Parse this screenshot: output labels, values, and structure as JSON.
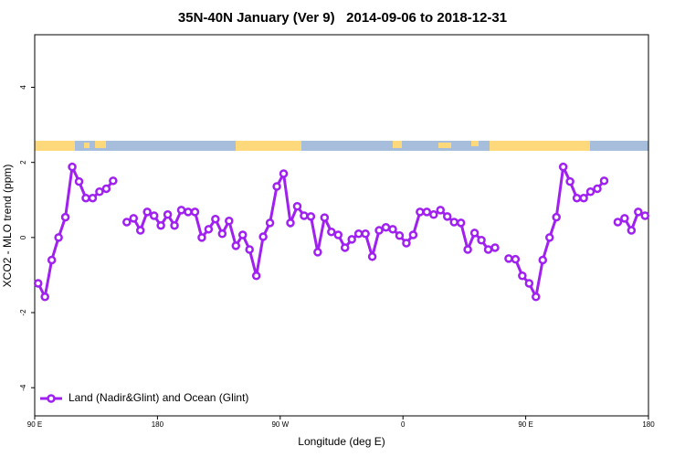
{
  "chart_data": {
    "type": "line",
    "title": "35N-40N January (Ver 9)   2014-09-06 to 2018-12-31",
    "x_label": "Longitude (deg E)",
    "y_label": "XCO2 - MLO trend (ppm)",
    "x": [
      92.5,
      97.5,
      102.5,
      107.5,
      112.5,
      117.5,
      122.5,
      127.5,
      132.5,
      137.5,
      142.5,
      147.5,
      152.5,
      157.5,
      162.5,
      167.5,
      172.5,
      177.5,
      182.5,
      187.5,
      192.5,
      197.5,
      202.5,
      207.5,
      212.5,
      217.5,
      222.5,
      227.5,
      232.5,
      237.5,
      242.5,
      247.5,
      252.5,
      257.5,
      262.5,
      267.5,
      272.5,
      277.5,
      282.5,
      287.5,
      292.5,
      297.5,
      302.5,
      307.5,
      312.5,
      317.5,
      322.5,
      327.5,
      332.5,
      337.5,
      342.5,
      347.5,
      352.5,
      357.5,
      362.5,
      367.5,
      372.5,
      377.5,
      382.5,
      387.5,
      392.5,
      397.5,
      402.5,
      407.5,
      412.5,
      417.5,
      422.5,
      427.5,
      432.5,
      437.5,
      442.5,
      447.5,
      452.5,
      457.5,
      462.5,
      467.5,
      472.5,
      477.5,
      482.5,
      487.5,
      492.5,
      497.5,
      502.5,
      507.5,
      512.5,
      517.5,
      522.5,
      527.5,
      532.5,
      537.5
    ],
    "series": [
      {
        "name": "Land (Nadir&Glint) and Ocean (Glint)",
        "color": "#a020f0",
        "values": [
          -1.22,
          -1.58,
          -0.6,
          0,
          0.54,
          1.88,
          1.49,
          1.05,
          1.05,
          1.22,
          1.3,
          1.51,
          null,
          0.41,
          0.51,
          0.19,
          0.68,
          0.58,
          0.32,
          0.61,
          0.32,
          0.73,
          0.68,
          0.68,
          0,
          0.22,
          0.49,
          0.1,
          0.44,
          -0.22,
          0.07,
          -0.32,
          -1.02,
          0.02,
          0.39,
          1.36,
          1.7,
          0.39,
          0.83,
          0.58,
          0.56,
          -0.39,
          0.53,
          0.15,
          0.07,
          -0.27,
          -0.05,
          0.1,
          0.1,
          -0.51,
          0.19,
          0.27,
          0.22,
          0.05,
          -0.15,
          0.07,
          0.68,
          0.68,
          0.61,
          0.73,
          0.56,
          0.41,
          0.39,
          -0.32,
          0.12,
          -0.07,
          -0.32,
          -0.27,
          null,
          -0.56,
          -0.58,
          -1.02,
          -1.22,
          -1.58,
          -0.6,
          0,
          0.54,
          1.88,
          1.49,
          1.05,
          1.05,
          1.22,
          1.3,
          1.51,
          null,
          0.41,
          0.51,
          0.19,
          0.68,
          0.58
        ]
      }
    ],
    "xlim": [
      90,
      540
    ],
    "xticks": [
      {
        "value": 90,
        "label": "90 E"
      },
      180,
      {
        "value": 270,
        "label": "90 W"
      },
      {
        "value": 360,
        "label": "0"
      },
      {
        "value": 450,
        "label": "90 E"
      },
      {
        "value": 540,
        "label": "180"
      }
    ],
    "ylim": [
      -4.75,
      5.4
    ],
    "yticks": [
      -4,
      -2,
      0,
      2,
      4
    ],
    "legend": "bottomleft"
  }
}
